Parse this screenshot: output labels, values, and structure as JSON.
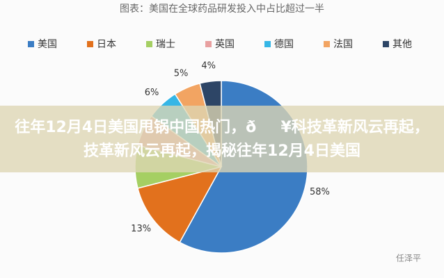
{
  "chart_data": {
    "type": "pie",
    "title": "图表：美国在全球药品研发投入中占比超过一半",
    "categories": [
      "美国",
      "日本",
      "瑞士",
      "英国",
      "德国",
      "法国",
      "其他"
    ],
    "values": [
      58,
      13,
      8,
      6,
      6,
      5,
      4
    ],
    "value_labels": [
      "58%",
      "13%",
      null,
      null,
      "6%",
      "5%",
      "4%"
    ],
    "colors": [
      "#3b7dc4",
      "#e2711d",
      "#a5cf63",
      "#e8a0a0",
      "#35b6e6",
      "#f2a462",
      "#2d4566"
    ],
    "legend": "top"
  },
  "overlay": {
    "headline": [
      "往年12月4日美国甩锅中国热门，ð¥科技革新风云再起，",
      "技革新风云再起，揭秘往年12月4日美国"
    ],
    "watermark": "任泽平"
  }
}
